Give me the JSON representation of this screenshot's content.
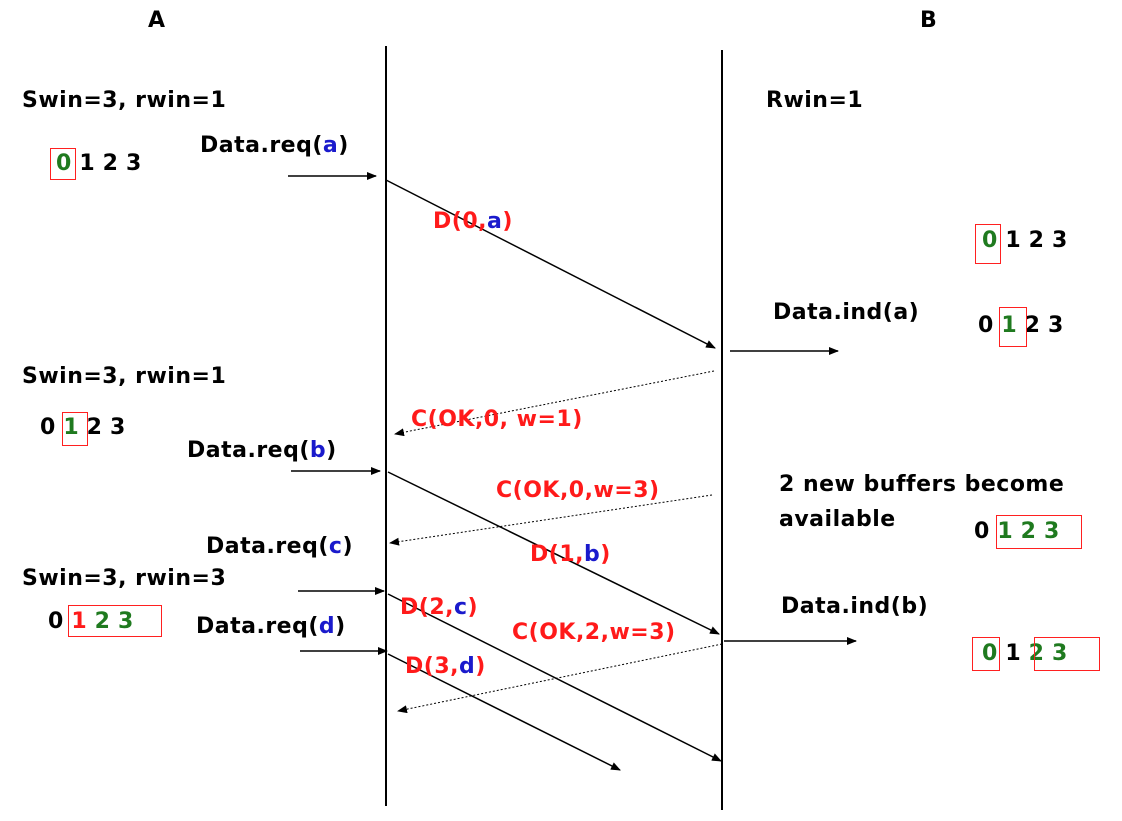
{
  "entities": {
    "a": "A",
    "b": "B"
  },
  "left_state": {
    "s1": "Swin=3, rwin=1",
    "s2": "Swin=3, rwin=1",
    "s3": "Swin=3, rwin=3"
  },
  "right_state": {
    "rwin": "Rwin=1",
    "buffers_line1": "2 new buffers become",
    "buffers_line2": "available"
  },
  "requests": {
    "prefix": "Data.req(",
    "suffix": ")",
    "args": [
      "a",
      "b",
      "c",
      "d"
    ]
  },
  "indications": {
    "ind_a": "Data.ind(a)",
    "ind_b": "Data.ind(b)"
  },
  "frames": {
    "d0": {
      "pre": "D(0,",
      "arg": "a",
      "post": ")"
    },
    "d1": {
      "pre": "D(1,",
      "arg": "b",
      "post": ")"
    },
    "d2": {
      "pre": "D(2,",
      "arg": "c",
      "post": ")"
    },
    "d3": {
      "pre": "D(3,",
      "arg": "d",
      "post": ")"
    }
  },
  "controls": {
    "c1": "C(OK,0,  w=1)",
    "c2": "C(OK,0,w=3)",
    "c3": "C(OK,2,w=3)"
  },
  "sequence": {
    "n0": "0",
    "n1": "1",
    "n2": "2",
    "n3": "3"
  },
  "colors": {
    "data": "#1a1acc",
    "frame": "#ff1a1a",
    "window": "#1f7a1f",
    "text": "#000000"
  }
}
